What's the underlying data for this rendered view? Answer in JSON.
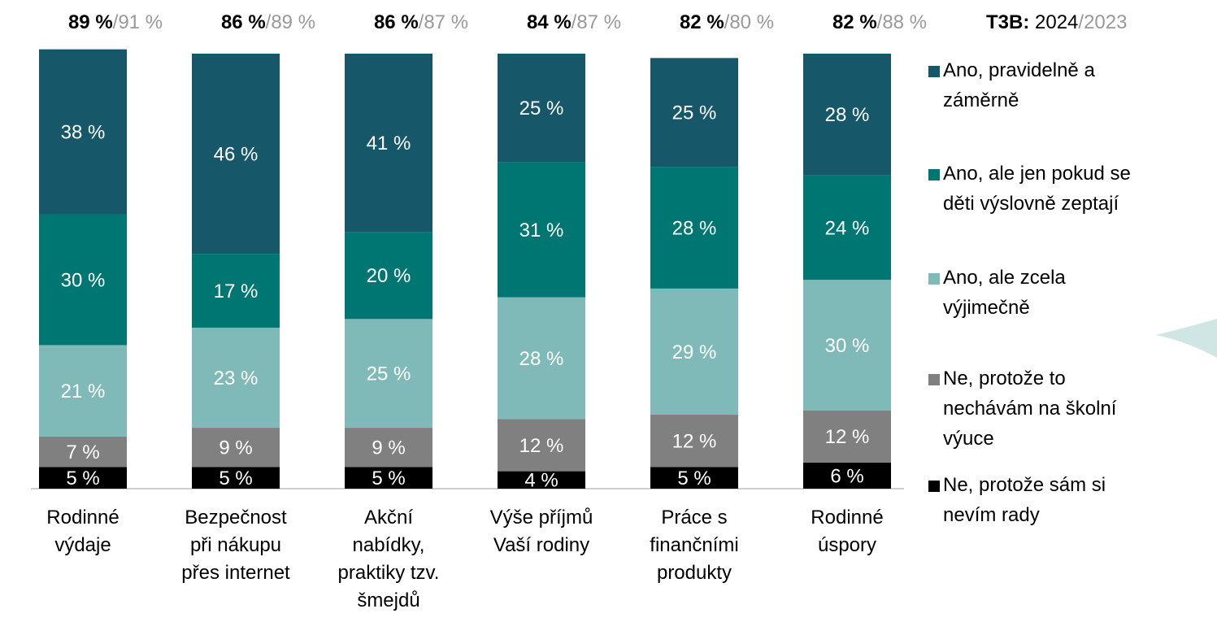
{
  "chart_data": {
    "type": "stacked_bar",
    "categories": [
      "Rodinné\nvýdaje",
      "Bezpečnost\npři nákupu\npřes internet",
      "Akční\nnabídky,\npraktiky tzv.\nšmejdů",
      "Výše příjmů\nVaší rodiny",
      "Práce s\nfinančními\nprodukty",
      "Rodinné\núspory"
    ],
    "series": [
      {
        "name": "Ano, pravidelně a\nzáměrně",
        "color": "#16586a",
        "values": [
          38,
          46,
          41,
          25,
          25,
          28
        ],
        "value_labels": [
          "38 %",
          "46 %",
          "41 %",
          "25 %",
          "25 %",
          "28 %"
        ]
      },
      {
        "name": "Ano, ale jen pokud se\nděti výslovně zeptají",
        "color": "#007672",
        "values": [
          30,
          17,
          20,
          31,
          28,
          24
        ],
        "value_labels": [
          "30 %",
          "17 %",
          "20 %",
          "31 %",
          "28 %",
          "24 %"
        ]
      },
      {
        "name": "Ano, ale zcela\nvýjimečně",
        "color": "#7fbab8",
        "values": [
          21,
          23,
          25,
          28,
          29,
          30
        ],
        "value_labels": [
          "21 %",
          "23 %",
          "25 %",
          "28 %",
          "29 %",
          "30 %"
        ]
      },
      {
        "name": "Ne, protože to\nnechávám na školní\nvýuce",
        "color": "#808080",
        "values": [
          7,
          9,
          9,
          12,
          12,
          12
        ],
        "value_labels": [
          "7 %",
          "9 %",
          "9 %",
          "12 %",
          "12 %",
          "12 %"
        ]
      },
      {
        "name": "Ne, protože sám si\nnevím rady",
        "color": "#000000",
        "values": [
          5,
          5,
          5,
          4,
          5,
          6
        ],
        "value_labels": [
          "5 %",
          "5 %",
          "5 %",
          "4 %",
          "5 %",
          "6 %"
        ]
      }
    ],
    "ylim": [
      0,
      100
    ],
    "t3b_header": {
      "label": "T3B:",
      "current": "2024",
      "previous": "2023"
    },
    "separator": "/",
    "t3b_current": [
      "89 %",
      "86 %",
      "86 %",
      "84 %",
      "82 %",
      "82 %"
    ],
    "t3b_previous": [
      "91 %",
      "89 %",
      "87 %",
      "87 %",
      "80 %",
      "88 %"
    ]
  }
}
